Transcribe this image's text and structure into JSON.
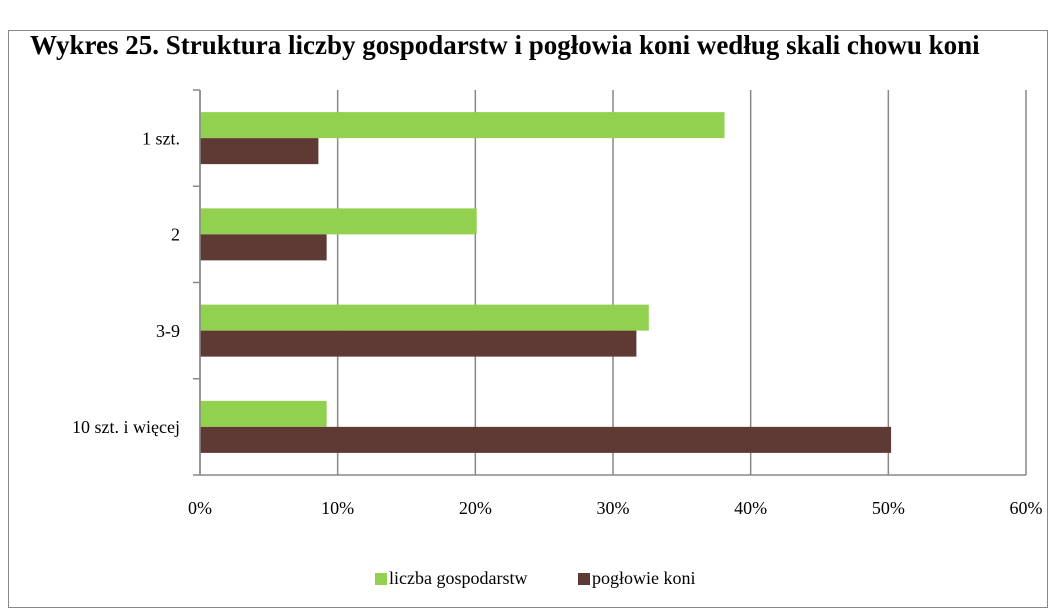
{
  "chart_data": {
    "type": "hbar",
    "title": "Wykres 25. Struktura liczby gospodarstw i pogłowia koni według skali chowu koni",
    "categories": [
      "1 szt.",
      "2",
      "3-9",
      "10 szt. i więcej"
    ],
    "series": [
      {
        "name": "liczba gospodarstw",
        "color": "#92d050",
        "values": [
          38.1,
          20.1,
          32.6,
          9.2
        ]
      },
      {
        "name": "pogłowie koni",
        "color": "#5f3a35",
        "values": [
          8.6,
          9.2,
          31.7,
          50.2
        ]
      }
    ],
    "xlim": [
      0,
      60
    ],
    "xticks": [
      {
        "value": 0,
        "label": "0%"
      },
      {
        "value": 10,
        "label": "10%"
      },
      {
        "value": 20,
        "label": "20%"
      },
      {
        "value": 30,
        "label": "30%"
      },
      {
        "value": 40,
        "label": "40%"
      },
      {
        "value": 50,
        "label": "50%"
      },
      {
        "value": 60,
        "label": "60%"
      }
    ],
    "grid": true,
    "legend": "bottom"
  }
}
